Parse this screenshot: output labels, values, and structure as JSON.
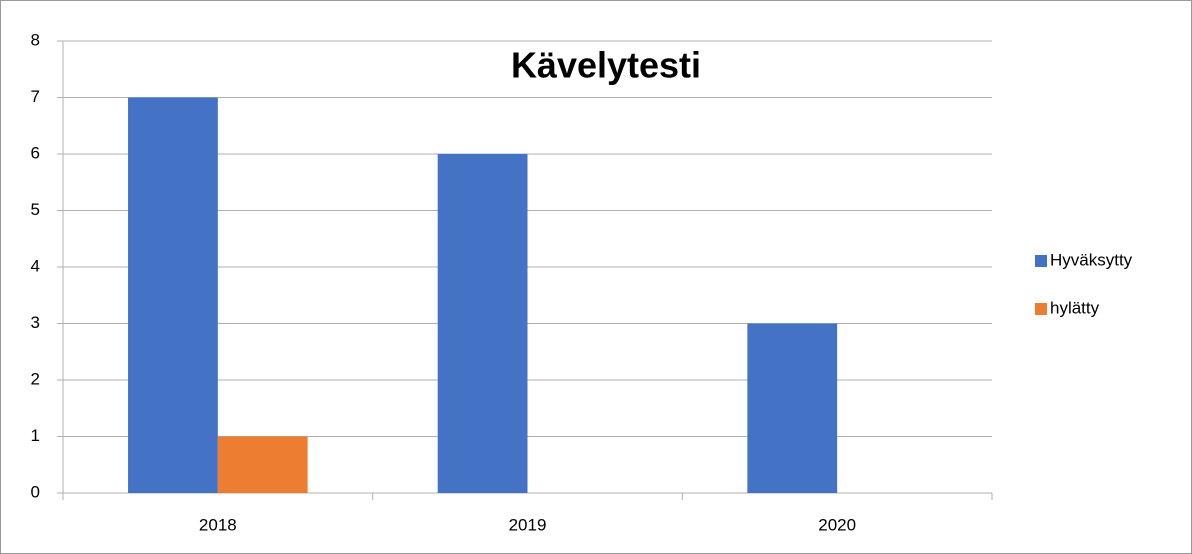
{
  "chart_data": {
    "type": "bar",
    "title": "Kävelytesti",
    "categories": [
      "2018",
      "2019",
      "2020"
    ],
    "series": [
      {
        "name": "Hyväksytty",
        "color": "#4472c4",
        "values": [
          7,
          6,
          3
        ]
      },
      {
        "name": "hylätty",
        "color": "#ed7d31",
        "values": [
          1,
          0,
          0
        ]
      }
    ],
    "ylim": [
      0,
      8
    ],
    "yticks": [
      0,
      1,
      2,
      3,
      4,
      5,
      6,
      7,
      8
    ],
    "grid": true,
    "legend": "right"
  }
}
